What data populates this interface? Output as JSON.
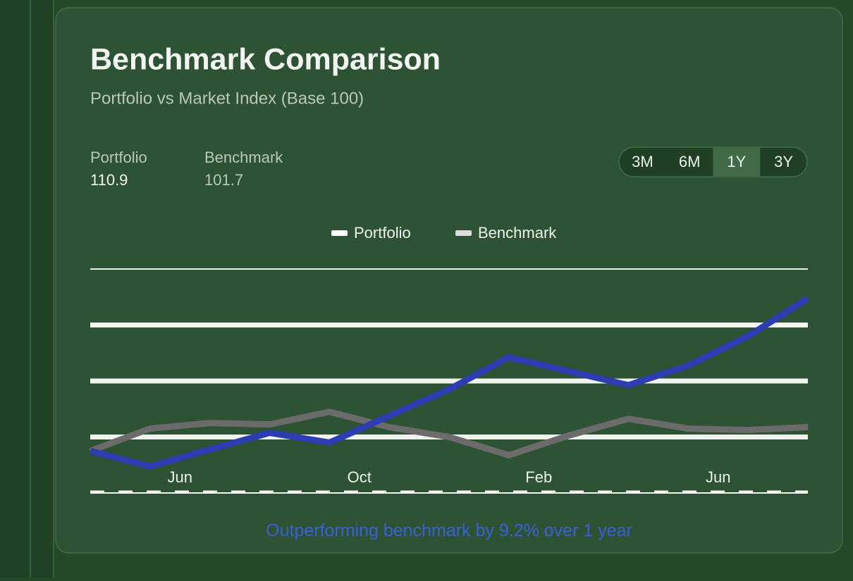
{
  "header": {
    "title": "Benchmark Comparison",
    "subtitle": "Portfolio vs Market Index (Base 100)"
  },
  "stats": [
    {
      "label": "Portfolio",
      "value": 110.9
    },
    {
      "label": "Benchmark",
      "value": 101.7
    }
  ],
  "range_buttons": [
    "3M",
    "6M",
    "1Y",
    "3Y"
  ],
  "active_range": 2,
  "chart_data": {
    "type": "line",
    "categories": [
      null,
      "Jun",
      null,
      null,
      "Oct",
      null,
      null,
      "Feb",
      null,
      null,
      "Jun",
      null,
      null
    ],
    "series": [
      {
        "name": "Portfolio",
        "color": "#2d3db2",
        "values": [
          100.0,
          98.9,
          100.1,
          101.3,
          100.6,
          102.5,
          104.4,
          106.7,
          105.7,
          104.7,
          106.1,
          108.2,
          110.9
        ]
      },
      {
        "name": "Benchmark",
        "color": "#6b6b6b",
        "values": [
          100.0,
          101.6,
          102.0,
          101.9,
          102.8,
          101.7,
          101.0,
          99.7,
          101.1,
          102.3,
          101.6,
          101.5,
          101.7
        ]
      }
    ],
    "ylim": [
      97,
      113
    ],
    "yticks": [
      97,
      101,
      105,
      109,
      113
    ],
    "grid": true,
    "legend": "top"
  },
  "footer": "Outperforming benchmark by 9.2% over 1 year"
}
